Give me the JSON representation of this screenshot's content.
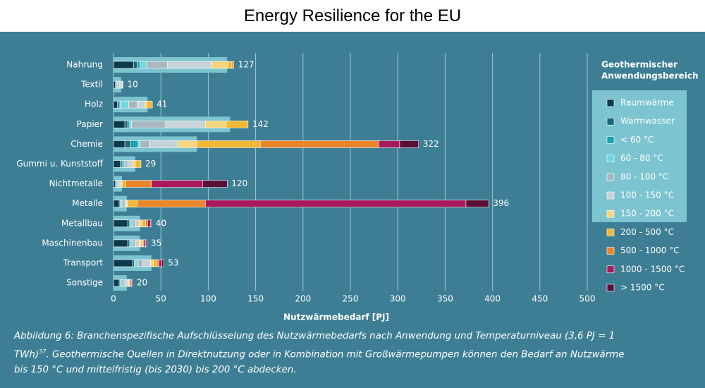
{
  "page_title": "Energy Resilience for the EU",
  "chart_data": {
    "type": "stacked_barh",
    "categories": [
      "Nahrung",
      "Textil",
      "Holz",
      "Papier",
      "Chemie",
      "Gummi u. Kunststoff",
      "Nichtmetalle",
      "Metalle",
      "Metallbau",
      "Maschinenbau",
      "Transport",
      "Sonstige"
    ],
    "totals": [
      127,
      10,
      41,
      142,
      322,
      29,
      120,
      396,
      40,
      35,
      53,
      20
    ],
    "background_values": [
      120,
      8,
      36,
      123,
      88,
      23,
      9,
      14,
      28,
      28,
      40,
      14
    ],
    "background_color": "#7cc4cf",
    "series": [
      {
        "name": "Raumwärme",
        "color": "#0d3a4a",
        "values": [
          21,
          2,
          4,
          12,
          12,
          7,
          2,
          6,
          15,
          15,
          20,
          6
        ]
      },
      {
        "name": "Warmwasser",
        "color": "#1d6676",
        "values": [
          4,
          1,
          2,
          3,
          6,
          2,
          1,
          1,
          2,
          2,
          2,
          1
        ]
      },
      {
        "name": "< 60 °C",
        "color": "#17a3ae",
        "values": [
          3,
          0,
          1,
          2,
          8,
          2,
          0,
          1,
          1,
          1,
          1,
          1
        ]
      },
      {
        "name": "60 - 80 °C",
        "color": "#72d6df",
        "values": [
          7,
          1,
          9,
          2,
          2,
          1,
          1,
          1,
          2,
          2,
          3,
          2
        ]
      },
      {
        "name": "80 - 100 °C",
        "color": "#a9b8be",
        "values": [
          22,
          2,
          9,
          36,
          10,
          3,
          2,
          3,
          3,
          3,
          5,
          2
        ]
      },
      {
        "name": "100 - 150 °C",
        "color": "#c8d3d7",
        "values": [
          46,
          3,
          8,
          42,
          30,
          5,
          2,
          2,
          4,
          4,
          8,
          3
        ]
      },
      {
        "name": "150 - 200 °C",
        "color": "#f5d57e",
        "values": [
          18,
          1,
          2,
          22,
          20,
          3,
          1,
          1,
          3,
          2,
          3,
          1
        ]
      },
      {
        "name": "200 - 500 °C",
        "color": "#f2b733",
        "values": [
          4,
          0,
          6,
          23,
          67,
          6,
          4,
          10,
          4,
          2,
          4,
          1
        ]
      },
      {
        "name": "500 - 1000 °C",
        "color": "#e8862a",
        "values": [
          2,
          0,
          0,
          0,
          125,
          0,
          27,
          72,
          2,
          1,
          2,
          1
        ]
      },
      {
        "name": "1000 - 1500 °C",
        "color": "#a8185a",
        "values": [
          0,
          0,
          0,
          0,
          22,
          0,
          54,
          275,
          3,
          2,
          3,
          1
        ]
      },
      {
        "name": "> 1500 °C",
        "color": "#5a0f35",
        "values": [
          0,
          0,
          0,
          0,
          20,
          0,
          26,
          24,
          1,
          1,
          2,
          1
        ]
      }
    ],
    "xlim": [
      0,
      500
    ],
    "xticks": [
      0,
      50,
      100,
      150,
      200,
      250,
      300,
      350,
      400,
      450,
      500
    ],
    "xlabel": "Nutzwärmebedarf [PJ]",
    "legend_title": [
      "Geothermischer",
      "Anwendungsbereich"
    ],
    "legend_highlight_count": 7,
    "grid": true
  },
  "caption": {
    "before": "Abbildung 6: Branchenspezifische Aufschlüsselung des Nutzwärmebedarfs nach Anwendung und Temperaturniveau (3,6 PJ = 1 TWh)",
    "superscript": "37",
    "after": ". Geothermische Quellen in Direktnutzung oder in Kombination mit Großwärmepumpen können den Bedarf an Nutzwärme bis 150 °C und mittelfristig (bis 2030) bis 200 °C abdecken."
  }
}
